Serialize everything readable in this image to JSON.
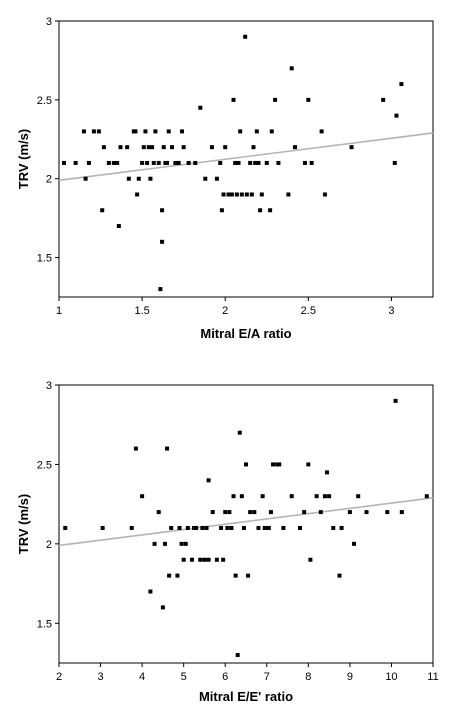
{
  "chart_data": [
    {
      "type": "scatter",
      "xlabel": "Mitral E/A ratio",
      "ylabel": "TRV (m/s)",
      "xlim": [
        1,
        3.25
      ],
      "ylim": [
        1.25,
        3
      ],
      "xticks": [
        1,
        1.5,
        2,
        2.5,
        3
      ],
      "xtick_labels": [
        "1",
        "1.5",
        "2",
        "2.5",
        "3"
      ],
      "yticks": [
        1.5,
        2,
        2.5,
        3
      ],
      "ytick_labels": [
        "1.5",
        "2",
        "2.5",
        "3"
      ],
      "trend_line": {
        "x": [
          1,
          3.25
        ],
        "y": [
          1.99,
          2.29
        ]
      },
      "points": [
        [
          1.03,
          2.1
        ],
        [
          1.1,
          2.1
        ],
        [
          1.15,
          2.3
        ],
        [
          1.16,
          2.0
        ],
        [
          1.18,
          2.1
        ],
        [
          1.21,
          2.3
        ],
        [
          1.24,
          2.3
        ],
        [
          1.26,
          1.8
        ],
        [
          1.27,
          2.2
        ],
        [
          1.3,
          2.1
        ],
        [
          1.33,
          2.1
        ],
        [
          1.35,
          2.1
        ],
        [
          1.36,
          1.7
        ],
        [
          1.37,
          2.2
        ],
        [
          1.41,
          2.2
        ],
        [
          1.42,
          2.0
        ],
        [
          1.45,
          2.3
        ],
        [
          1.46,
          2.3
        ],
        [
          1.47,
          1.9
        ],
        [
          1.48,
          2.0
        ],
        [
          1.5,
          2.1
        ],
        [
          1.51,
          2.2
        ],
        [
          1.52,
          2.3
        ],
        [
          1.53,
          2.1
        ],
        [
          1.54,
          2.2
        ],
        [
          1.55,
          2.0
        ],
        [
          1.56,
          2.2
        ],
        [
          1.57,
          2.1
        ],
        [
          1.58,
          2.3
        ],
        [
          1.6,
          2.1
        ],
        [
          1.61,
          1.3
        ],
        [
          1.62,
          1.6
        ],
        [
          1.62,
          1.8
        ],
        [
          1.63,
          2.2
        ],
        [
          1.64,
          2.1
        ],
        [
          1.65,
          2.1
        ],
        [
          1.66,
          2.3
        ],
        [
          1.68,
          2.2
        ],
        [
          1.7,
          2.1
        ],
        [
          1.72,
          2.1
        ],
        [
          1.74,
          2.3
        ],
        [
          1.75,
          2.2
        ],
        [
          1.78,
          2.1
        ],
        [
          1.82,
          2.1
        ],
        [
          1.85,
          2.45
        ],
        [
          1.88,
          2.0
        ],
        [
          1.92,
          2.2
        ],
        [
          1.95,
          2.0
        ],
        [
          1.97,
          2.1
        ],
        [
          1.98,
          1.8
        ],
        [
          1.99,
          1.9
        ],
        [
          2.0,
          2.2
        ],
        [
          2.02,
          1.9
        ],
        [
          2.04,
          1.9
        ],
        [
          2.05,
          2.5
        ],
        [
          2.06,
          2.1
        ],
        [
          2.07,
          1.9
        ],
        [
          2.08,
          2.1
        ],
        [
          2.09,
          2.3
        ],
        [
          2.1,
          1.9
        ],
        [
          2.12,
          2.9
        ],
        [
          2.13,
          1.9
        ],
        [
          2.15,
          2.1
        ],
        [
          2.16,
          1.9
        ],
        [
          2.17,
          2.2
        ],
        [
          2.18,
          2.1
        ],
        [
          2.19,
          2.3
        ],
        [
          2.2,
          2.1
        ],
        [
          2.21,
          1.8
        ],
        [
          2.22,
          1.9
        ],
        [
          2.25,
          2.1
        ],
        [
          2.27,
          1.8
        ],
        [
          2.28,
          2.3
        ],
        [
          2.3,
          2.5
        ],
        [
          2.32,
          2.1
        ],
        [
          2.38,
          1.9
        ],
        [
          2.4,
          2.7
        ],
        [
          2.42,
          2.2
        ],
        [
          2.48,
          2.1
        ],
        [
          2.5,
          2.5
        ],
        [
          2.52,
          2.1
        ],
        [
          2.58,
          2.3
        ],
        [
          2.6,
          1.9
        ],
        [
          2.76,
          2.2
        ],
        [
          2.95,
          2.5
        ],
        [
          3.02,
          2.1
        ],
        [
          3.03,
          2.4
        ],
        [
          3.06,
          2.6
        ]
      ]
    },
    {
      "type": "scatter",
      "xlabel": "Mitral E/E' ratio",
      "ylabel": "TRV (m/s)",
      "xlim": [
        2,
        11
      ],
      "ylim": [
        1.25,
        3
      ],
      "xticks": [
        2,
        3,
        4,
        5,
        6,
        7,
        8,
        9,
        10,
        11
      ],
      "xtick_labels": [
        "2",
        "3",
        "4",
        "5",
        "6",
        "7",
        "8",
        "9",
        "10",
        "11"
      ],
      "yticks": [
        1.5,
        2,
        2.5,
        3
      ],
      "ytick_labels": [
        "1.5",
        "2",
        "2.5",
        "3"
      ],
      "trend_line": {
        "x": [
          2,
          11
        ],
        "y": [
          1.99,
          2.29
        ]
      },
      "points": [
        [
          2.15,
          2.1
        ],
        [
          3.05,
          2.1
        ],
        [
          3.75,
          2.1
        ],
        [
          3.85,
          2.6
        ],
        [
          4.0,
          2.3
        ],
        [
          4.2,
          1.7
        ],
        [
          4.3,
          2.0
        ],
        [
          4.4,
          2.2
        ],
        [
          4.5,
          1.6
        ],
        [
          4.55,
          2.0
        ],
        [
          4.6,
          2.6
        ],
        [
          4.65,
          1.8
        ],
        [
          4.7,
          2.1
        ],
        [
          4.85,
          1.8
        ],
        [
          4.9,
          2.1
        ],
        [
          4.95,
          2.0
        ],
        [
          5.0,
          1.9
        ],
        [
          5.05,
          2.0
        ],
        [
          5.1,
          2.1
        ],
        [
          5.2,
          1.9
        ],
        [
          5.25,
          2.1
        ],
        [
          5.3,
          2.1
        ],
        [
          5.4,
          1.9
        ],
        [
          5.45,
          2.1
        ],
        [
          5.5,
          1.9
        ],
        [
          5.55,
          2.1
        ],
        [
          5.6,
          1.9
        ],
        [
          5.6,
          2.4
        ],
        [
          5.7,
          2.2
        ],
        [
          5.8,
          1.9
        ],
        [
          5.9,
          2.1
        ],
        [
          5.95,
          1.9
        ],
        [
          6.0,
          2.2
        ],
        [
          6.05,
          2.1
        ],
        [
          6.1,
          2.2
        ],
        [
          6.15,
          2.1
        ],
        [
          6.2,
          2.3
        ],
        [
          6.25,
          1.8
        ],
        [
          6.3,
          1.3
        ],
        [
          6.35,
          2.7
        ],
        [
          6.4,
          2.3
        ],
        [
          6.45,
          2.1
        ],
        [
          6.5,
          2.5
        ],
        [
          6.55,
          1.8
        ],
        [
          6.6,
          2.2
        ],
        [
          6.7,
          2.2
        ],
        [
          6.8,
          2.1
        ],
        [
          6.9,
          2.3
        ],
        [
          6.95,
          2.1
        ],
        [
          7.0,
          2.1
        ],
        [
          7.05,
          2.1
        ],
        [
          7.1,
          2.2
        ],
        [
          7.15,
          2.5
        ],
        [
          7.25,
          2.5
        ],
        [
          7.3,
          2.5
        ],
        [
          7.4,
          2.1
        ],
        [
          7.6,
          2.3
        ],
        [
          7.8,
          2.1
        ],
        [
          7.9,
          2.2
        ],
        [
          8.0,
          2.5
        ],
        [
          8.05,
          1.9
        ],
        [
          8.2,
          2.3
        ],
        [
          8.3,
          2.2
        ],
        [
          8.4,
          2.3
        ],
        [
          8.45,
          2.45
        ],
        [
          8.5,
          2.3
        ],
        [
          8.6,
          2.1
        ],
        [
          8.75,
          1.8
        ],
        [
          8.8,
          2.1
        ],
        [
          9.0,
          2.2
        ],
        [
          9.1,
          2.0
        ],
        [
          9.2,
          2.3
        ],
        [
          9.4,
          2.2
        ],
        [
          9.9,
          2.2
        ],
        [
          10.1,
          2.9
        ],
        [
          10.25,
          2.2
        ],
        [
          10.85,
          2.3
        ]
      ]
    }
  ]
}
